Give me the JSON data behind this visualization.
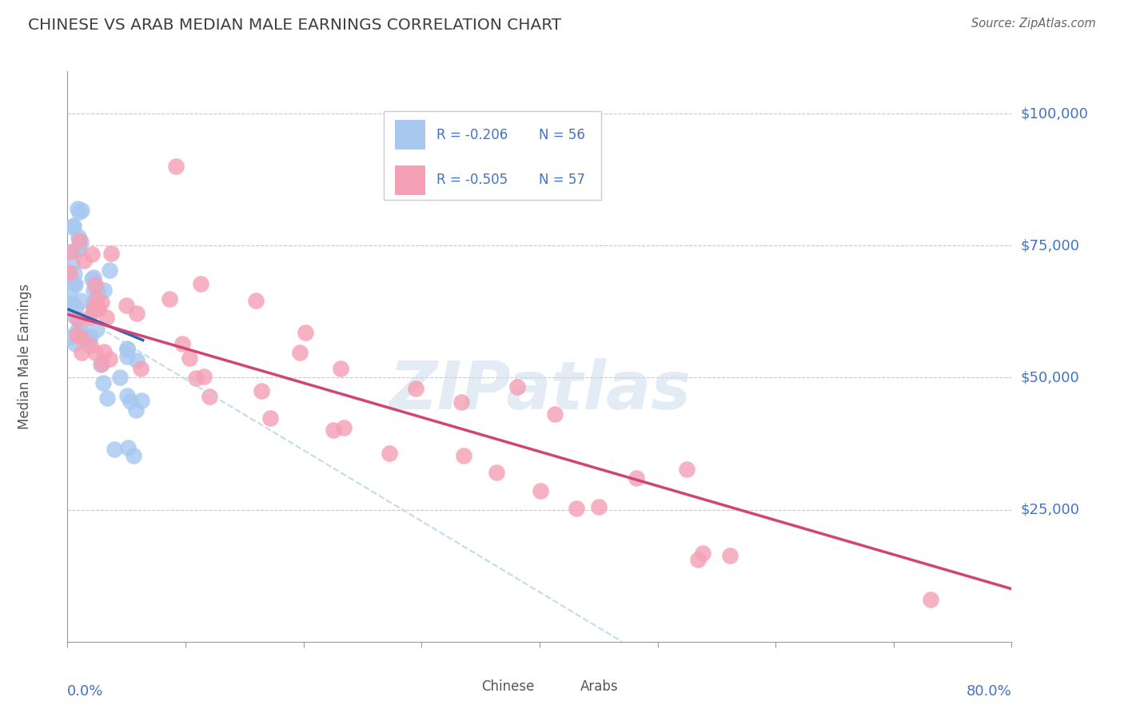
{
  "title": "CHINESE VS ARAB MEDIAN MALE EARNINGS CORRELATION CHART",
  "source_text": "Source: ZipAtlas.com",
  "ylabel": "Median Male Earnings",
  "ytick_labels": [
    "$25,000",
    "$50,000",
    "$75,000",
    "$100,000"
  ],
  "ytick_values": [
    25000,
    50000,
    75000,
    100000
  ],
  "ymin": 0,
  "ymax": 108000,
  "xmin": 0.0,
  "xmax": 0.8,
  "legend_r1": "R = -0.206",
  "legend_n1": "N = 56",
  "legend_r2": "R = -0.505",
  "legend_n2": "N = 57",
  "legend_label1": "Chinese",
  "legend_label2": "Arabs",
  "watermark": "ZIPatlas",
  "xtick_label_left": "0.0%",
  "xtick_label_right": "80.0%",
  "background_color": "#ffffff",
  "grid_color": "#c8c8c8",
  "chinese_color": "#a8c8f0",
  "arab_color": "#f5a0b5",
  "chinese_line_color": "#3060b0",
  "arab_line_color": "#d04575",
  "dashed_line_color": "#b8d4ee",
  "title_color": "#404040",
  "axis_label_color": "#4472c4",
  "watermark_color": "#ccdcee"
}
